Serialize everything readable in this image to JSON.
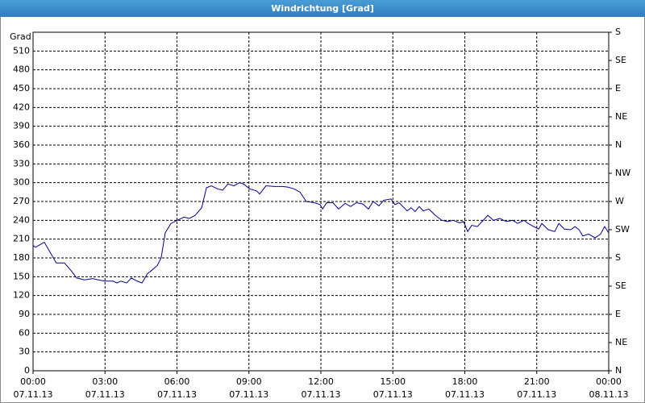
{
  "chart_data": {
    "type": "line",
    "title": "Windrichtung [Grad]",
    "y_label": "Grad",
    "x": [
      0,
      0.1,
      0.24,
      0.47,
      0.97,
      1.31,
      1.58,
      1.82,
      2.15,
      2.49,
      2.72,
      2.99,
      3.33,
      3.5,
      3.66,
      3.9,
      4.1,
      4.34,
      4.54,
      4.77,
      4.94,
      5.18,
      5.34,
      5.51,
      5.75,
      6.02,
      6.29,
      6.52,
      6.76,
      7.03,
      7.23,
      7.43,
      7.7,
      7.9,
      8.13,
      8.37,
      8.61,
      8.77,
      9.04,
      9.31,
      9.45,
      9.71,
      10.05,
      10.39,
      10.62,
      10.89,
      11.13,
      11.39,
      11.73,
      11.97,
      12.07,
      12.24,
      12.5,
      12.74,
      13.01,
      13.24,
      13.48,
      13.75,
      13.98,
      14.18,
      14.42,
      14.62,
      14.92,
      15.09,
      15.26,
      15.6,
      15.76,
      15.93,
      16.1,
      16.27,
      16.5,
      16.77,
      17.04,
      17.28,
      17.51,
      17.78,
      17.95,
      18.12,
      18.29,
      18.52,
      18.72,
      18.96,
      19.19,
      19.46,
      19.73,
      20,
      20.2,
      20.47,
      20.64,
      20.87,
      21.08,
      21.21,
      21.48,
      21.75,
      21.92,
      22.15,
      22.42,
      22.59,
      22.76,
      22.92,
      23.16,
      23.43,
      23.66,
      23.83,
      24
    ],
    "values": [
      200,
      197,
      200,
      205,
      172,
      172,
      160,
      148,
      145,
      147,
      145,
      143,
      143,
      140,
      143,
      140,
      148,
      143,
      140,
      155,
      160,
      168,
      180,
      220,
      235,
      240,
      245,
      243,
      248,
      260,
      292,
      295,
      290,
      288,
      298,
      295,
      300,
      298,
      290,
      287,
      282,
      295,
      294,
      294,
      293,
      290,
      285,
      270,
      268,
      265,
      258,
      268,
      268,
      258,
      267,
      262,
      268,
      266,
      258,
      270,
      263,
      272,
      274,
      265,
      268,
      255,
      260,
      254,
      262,
      255,
      258,
      248,
      240,
      238,
      240,
      236,
      238,
      222,
      232,
      230,
      238,
      248,
      240,
      243,
      238,
      240,
      235,
      240,
      235,
      230,
      226,
      235,
      225,
      222,
      235,
      226,
      225,
      230,
      225,
      215,
      218,
      212,
      218,
      230,
      220
    ],
    "color": "#00008b",
    "xlim": [
      0,
      24
    ],
    "xticks": [
      {
        "value": 0,
        "label": "00:00\n07.11.13"
      },
      {
        "value": 3,
        "label": "03:00\n07.11.13"
      },
      {
        "value": 6,
        "label": "06:00\n07.11.13"
      },
      {
        "value": 9,
        "label": "09:00\n07.11.13"
      },
      {
        "value": 12,
        "label": "12:00\n07.11.13"
      },
      {
        "value": 15,
        "label": "15:00\n07.11.13"
      },
      {
        "value": 18,
        "label": "18:00\n07.11.13"
      },
      {
        "value": 21,
        "label": "21:00\n07.11.13"
      },
      {
        "value": 24,
        "label": "00:00\n08.11.13"
      }
    ],
    "ylim": [
      0,
      540
    ],
    "yticks": [
      0,
      30,
      60,
      90,
      120,
      150,
      180,
      210,
      240,
      270,
      300,
      330,
      360,
      390,
      420,
      450,
      480,
      510
    ],
    "y2lim": [
      0,
      540
    ],
    "y2ticks": [
      {
        "value": 0,
        "label": "N"
      },
      {
        "value": 45,
        "label": "NE"
      },
      {
        "value": 90,
        "label": "E"
      },
      {
        "value": 135,
        "label": "SE"
      },
      {
        "value": 180,
        "label": "S"
      },
      {
        "value": 225,
        "label": "SW"
      },
      {
        "value": 270,
        "label": "W"
      },
      {
        "value": 315,
        "label": "NW"
      },
      {
        "value": 360,
        "label": "N"
      },
      {
        "value": 405,
        "label": "NE"
      },
      {
        "value": 450,
        "label": "E"
      },
      {
        "value": 495,
        "label": "SE"
      },
      {
        "value": 540,
        "label": "S"
      }
    ],
    "grid": true
  }
}
